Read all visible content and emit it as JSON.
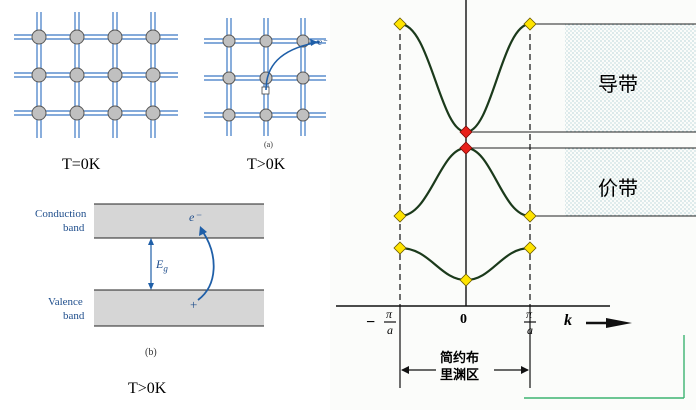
{
  "lattice": {
    "left_caption": "T=0K",
    "right_caption": "T>0K",
    "electron_label": "e⁻",
    "panel_tag": "(a)"
  },
  "band_gap": {
    "conduction_label_1": "Conduction",
    "conduction_label_2": "band",
    "valence_label_1": "Valence",
    "valence_label_2": "band",
    "gap_label": "E",
    "gap_sub": "g",
    "electron_label": "e⁻",
    "hole_label": "+",
    "panel_tag": "(b)",
    "caption": "T>0K"
  },
  "band_structure": {
    "conduction_band_label": "导带",
    "valence_band_label": "价带",
    "origin_label": "0",
    "k_axis_label": "k",
    "left_bound_num": "π",
    "left_bound_den": "a",
    "left_bound_sign": "−",
    "right_bound_num": "π",
    "right_bound_den": "a",
    "zone_label_1": "简约布",
    "zone_label_2": "里渊区"
  },
  "colors": {
    "lattice_line": "#3b78c4",
    "atom_fill": "#c0c0c0",
    "band_fill": "#d6d6d6",
    "arrow_blue": "#1f5fa8",
    "curve_green": "#1b3a1b",
    "marker_yellow": "#ffe400",
    "marker_red": "#e8201a",
    "dot_teal": "#3a8a9a"
  }
}
